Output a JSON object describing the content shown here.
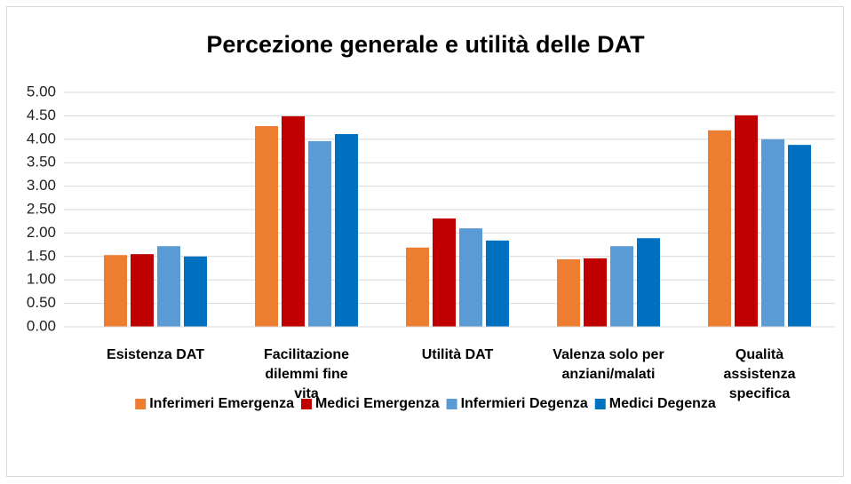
{
  "chart_data": {
    "type": "bar",
    "title": "Percezione generale e utilità delle DAT",
    "categories": [
      "Esistenza DAT",
      "Facilitazione dilemmi fine vita",
      "Utilità DAT",
      "Valenza solo per anziani/malati",
      "Qualità assistenza specifica"
    ],
    "series": [
      {
        "name": "Inferimeri Emergenza",
        "color": "#ed7d31",
        "values": [
          1.53,
          4.28,
          1.69,
          1.44,
          4.19
        ]
      },
      {
        "name": "Medici Emergenza",
        "color": "#c00000",
        "values": [
          1.55,
          4.49,
          2.31,
          1.46,
          4.51
        ]
      },
      {
        "name": "Infermieri Degenza",
        "color": "#5b9bd5",
        "values": [
          1.72,
          3.96,
          2.1,
          1.72,
          4.0
        ]
      },
      {
        "name": "Medici Degenza",
        "color": "#0070c0",
        "values": [
          1.5,
          4.11,
          1.84,
          1.89,
          3.88
        ]
      }
    ],
    "ylim": [
      0,
      5
    ],
    "yticks": [
      {
        "value": 0,
        "label": "0.00"
      },
      {
        "value": 0.5,
        "label": "0.50"
      },
      {
        "value": 1,
        "label": "1.00"
      },
      {
        "value": 1.5,
        "label": "1.50"
      },
      {
        "value": 2,
        "label": "2.00"
      },
      {
        "value": 2.5,
        "label": "2.50"
      },
      {
        "value": 3,
        "label": "3.00"
      },
      {
        "value": 3.5,
        "label": "3.50"
      },
      {
        "value": 4,
        "label": "4.00"
      },
      {
        "value": 4.5,
        "label": "4.50"
      },
      {
        "value": 5,
        "label": "5.00"
      }
    ],
    "grid": true,
    "legend": "bottom"
  }
}
